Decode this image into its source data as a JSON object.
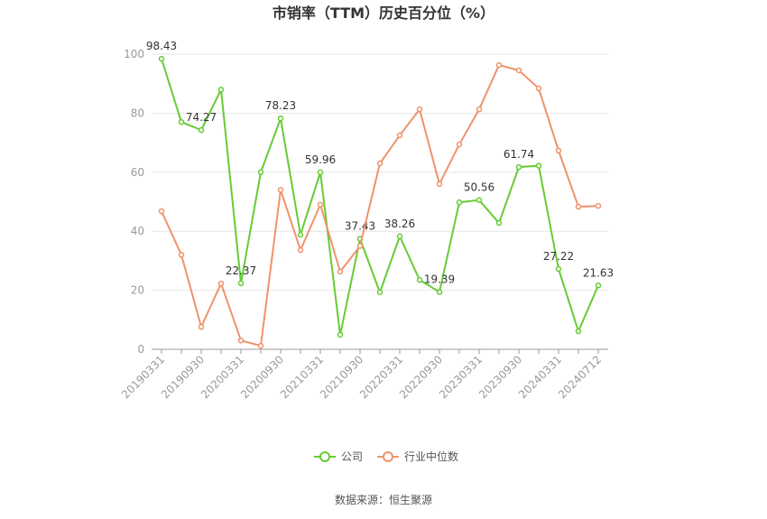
{
  "chart_data": {
    "type": "line",
    "title": "市销率（TTM）历史百分位（%）",
    "source": "数据来源：恒生聚源",
    "categories": [
      "20190331",
      null,
      "20190930",
      null,
      "20200331",
      null,
      "20200930",
      null,
      "20210331",
      null,
      "20210930",
      null,
      "20220331",
      null,
      "20220930",
      null,
      "20230331",
      null,
      "20230930",
      null,
      "20240331",
      null,
      "20240712"
    ],
    "series": [
      {
        "name": "公司",
        "color": "#66cc33",
        "values": [
          98.43,
          77,
          74.27,
          88,
          22.37,
          60,
          78.23,
          38.8,
          59.96,
          4.9,
          37.43,
          19.3,
          38.26,
          23.5,
          19.39,
          49.8,
          50.56,
          42.8,
          61.74,
          62.2,
          27.22,
          6.1,
          21.63
        ],
        "value_labels": [
          "98.43",
          null,
          "74.27",
          null,
          "22.37",
          null,
          "78.23",
          null,
          "59.96",
          null,
          "37.43",
          null,
          "38.26",
          null,
          "19.39",
          null,
          "50.56",
          null,
          "61.74",
          null,
          "27.22",
          null,
          "21.63"
        ]
      },
      {
        "name": "行业中位数",
        "color": "#f0926b",
        "values": [
          46.8,
          32,
          7.6,
          22.3,
          3,
          1.2,
          54,
          33.6,
          49,
          26.3,
          35,
          63,
          72.5,
          81.3,
          56,
          69.4,
          81.3,
          96.3,
          94.5,
          88.4,
          67.3,
          48.3,
          48.6
        ]
      }
    ],
    "ylim": [
      0,
      100
    ],
    "yticks": [
      0,
      20,
      40,
      60,
      80,
      100
    ],
    "grid": true,
    "legend": "bottom"
  }
}
